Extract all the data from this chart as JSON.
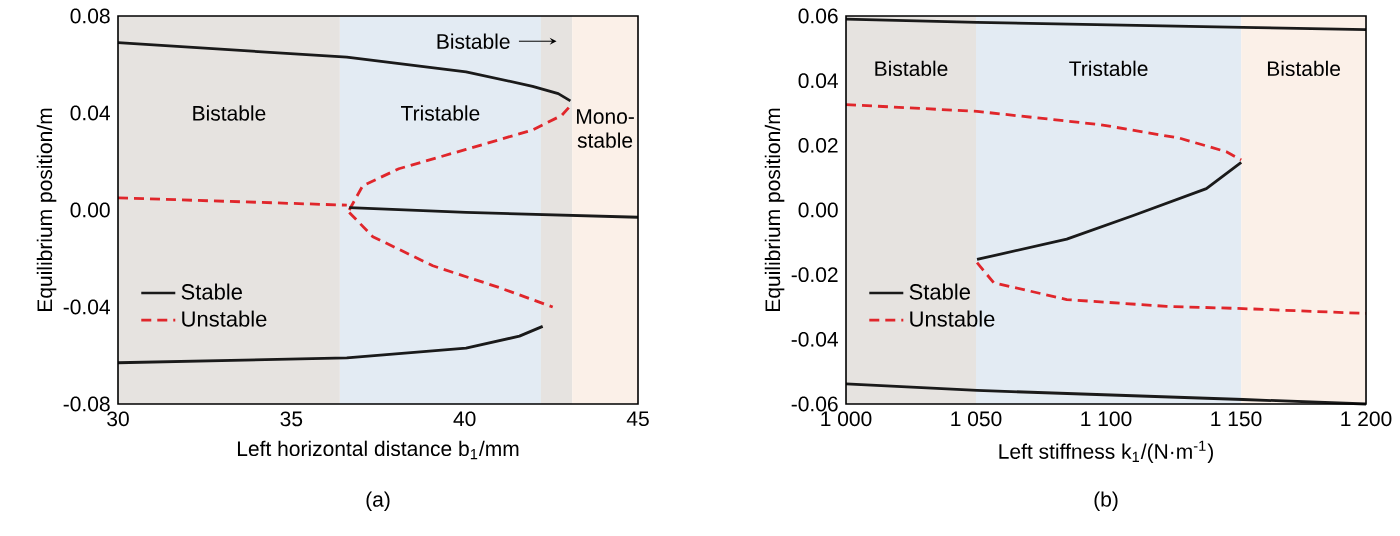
{
  "chart_data": [
    {
      "type": "line",
      "xlabel": "Left horizontal distance b$_{1}$/mm",
      "ylabel": "Equilibrium position/m",
      "annotations": [
        "(a)"
      ],
      "xlim": [
        30,
        45
      ],
      "xticks": [
        30,
        35,
        40,
        45
      ],
      "ylim": [
        -0.08,
        0.08
      ],
      "yticks": [
        {
          "value": -0.08,
          "label": "-0.08"
        },
        {
          "value": -0.04,
          "label": "-0.04"
        },
        {
          "value": 0,
          "label": "0.00"
        },
        {
          "value": 0.04,
          "label": "0.04"
        },
        {
          "value": 0.08,
          "label": "0.08"
        }
      ],
      "legend": "bottom left",
      "bands": [
        {
          "axis": "x",
          "from": 30,
          "to": 36.4,
          "label": "Bistable",
          "color": "#e6e3e0"
        },
        {
          "axis": "x",
          "from": 36.4,
          "to": 42.2,
          "label": "Tristable",
          "color": "#e3ebf3"
        },
        {
          "axis": "x",
          "from": 42.2,
          "to": 43.1,
          "label": "Bistable",
          "color": "#e6e3e0"
        },
        {
          "axis": "x",
          "from": 43.1,
          "to": 45,
          "label": "Mono-stable",
          "color": "#fbf0e8"
        }
      ],
      "series": [
        {
          "name": "Stable",
          "color": "#1a1a1a",
          "line_style": "solid",
          "x": [
            30,
            36.6,
            40.04,
            41.96,
            42.7,
            43.05
          ],
          "values": [
            0.069,
            0.063,
            0.057,
            0.051,
            0.048,
            0.045
          ]
        },
        {
          "name": "Unstable",
          "color": "#e0262b",
          "line_style": "dashed",
          "x": [
            36.67,
            37.06,
            38.1,
            40.04,
            41.96,
            42.8,
            43.05
          ],
          "values": [
            0.0,
            0.01,
            0.017,
            0.025,
            0.033,
            0.039,
            0.043
          ]
        },
        {
          "color": "#1a1a1a",
          "line_style": "solid",
          "x": [
            36.67,
            40.04,
            45
          ],
          "values": [
            0.001,
            -0.001,
            -0.003
          ]
        },
        {
          "color": "#e0262b",
          "line_style": "dashed",
          "x": [
            36.67,
            37.35,
            39.08,
            41,
            42.54
          ],
          "values": [
            -0.001,
            -0.011,
            -0.023,
            -0.032,
            -0.04
          ]
        },
        {
          "color": "#1a1a1a",
          "line_style": "solid",
          "x": [
            30,
            36.6,
            40.04,
            41.58,
            42.25
          ],
          "values": [
            -0.063,
            -0.061,
            -0.057,
            -0.052,
            -0.048
          ]
        },
        {
          "color": "#e0262b",
          "line_style": "dashed",
          "x": [
            30,
            36.6
          ],
          "values": [
            0.005,
            0.002
          ]
        }
      ]
    },
    {
      "type": "line",
      "xlabel": "Left stiffness k$_{1}$/(N·m$^{-1}$)",
      "ylabel": "Equilibrium position/m",
      "annotations": [
        "(b)"
      ],
      "xlim": [
        1000,
        1200
      ],
      "xticks": [
        {
          "value": 1000,
          "label": "1 000"
        },
        {
          "value": 1050,
          "label": "1 050"
        },
        {
          "value": 1100,
          "label": "1 100"
        },
        {
          "value": 1150,
          "label": "1 150"
        },
        {
          "value": 1200,
          "label": "1 200"
        }
      ],
      "ylim": [
        -0.06,
        0.06
      ],
      "yticks": [
        {
          "value": -0.06,
          "label": "-0.06"
        },
        {
          "value": -0.04,
          "label": "-0.04"
        },
        {
          "value": -0.02,
          "label": "-0.02"
        },
        {
          "value": 0,
          "label": "0.00"
        },
        {
          "value": 0.02,
          "label": "0.02"
        },
        {
          "value": 0.04,
          "label": "0.04"
        },
        {
          "value": 0.06,
          "label": "0.06"
        }
      ],
      "legend": "bottom left",
      "bands": [
        {
          "axis": "x",
          "from": 1000,
          "to": 1050,
          "label": "Bistable",
          "color": "#e6e3e0"
        },
        {
          "axis": "x",
          "from": 1050,
          "to": 1152,
          "label": "Tristable",
          "color": "#e3ebf3"
        },
        {
          "axis": "x",
          "from": 1152,
          "to": 1200,
          "label": "Bistable",
          "color": "#fbf0e8"
        }
      ],
      "series": [
        {
          "name": "Stable",
          "color": "#1a1a1a",
          "line_style": "solid",
          "x": [
            1152,
            1138.6,
            1110.5,
            1084.9,
            1061.9,
            1050.4
          ],
          "values": [
            0.0147,
            0.0066,
            -0.0017,
            -0.009,
            -0.0132,
            -0.0153
          ]
        },
        {
          "name": "Unstable",
          "color": "#e0262b",
          "line_style": "dashed",
          "x": [
            1000,
            1050.4,
            1097.7,
            1128.4,
            1146.3,
            1152
          ],
          "values": [
            0.0326,
            0.0305,
            0.0264,
            0.0222,
            0.018,
            0.0155
          ]
        },
        {
          "color": "#1a1a1a",
          "line_style": "solid",
          "x": [
            1000,
            1050.4,
            1152.7,
            1200
          ],
          "values": [
            0.059,
            0.058,
            0.0565,
            0.0558
          ]
        },
        {
          "color": "#e0262b",
          "line_style": "dashed",
          "x": [
            1050.4,
            1056.8,
            1084.9,
            1123.3,
            1152.7,
            1200
          ],
          "values": [
            -0.0163,
            -0.0225,
            -0.0277,
            -0.0298,
            -0.0305,
            -0.032
          ]
        },
        {
          "color": "#1a1a1a",
          "line_style": "solid",
          "x": [
            1000,
            1050.4,
            1152.7,
            1200
          ],
          "values": [
            -0.0538,
            -0.0558,
            -0.0586,
            -0.06
          ]
        }
      ]
    }
  ]
}
